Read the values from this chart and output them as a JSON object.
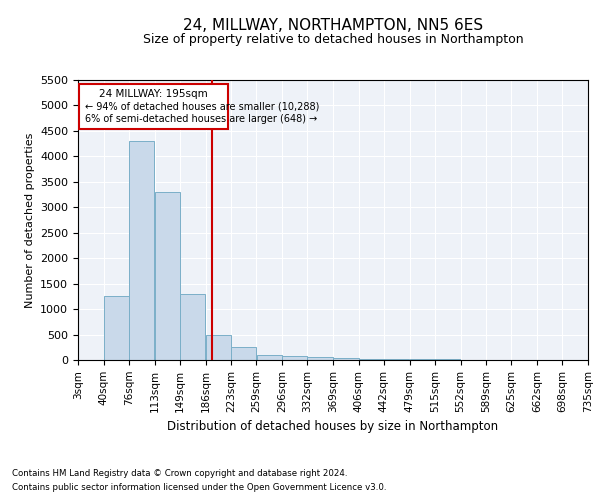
{
  "title": "24, MILLWAY, NORTHAMPTON, NN5 6ES",
  "subtitle": "Size of property relative to detached houses in Northampton",
  "xlabel": "Distribution of detached houses by size in Northampton",
  "ylabel": "Number of detached properties",
  "footnote1": "Contains HM Land Registry data © Crown copyright and database right 2024.",
  "footnote2": "Contains public sector information licensed under the Open Government Licence v3.0.",
  "annotation_title": "24 MILLWAY: 195sqm",
  "annotation_line1": "← 94% of detached houses are smaller (10,288)",
  "annotation_line2": "6% of semi-detached houses are larger (648) →",
  "property_size": 195,
  "bar_left_edges": [
    3,
    40,
    76,
    113,
    149,
    186,
    223,
    259,
    296,
    332,
    369,
    406,
    442,
    479,
    515,
    552,
    589,
    625,
    662,
    698,
    735
  ],
  "bar_heights": [
    0,
    1250,
    4300,
    3300,
    1300,
    500,
    250,
    100,
    75,
    50,
    30,
    25,
    20,
    15,
    10,
    8,
    6,
    5,
    4,
    3,
    0
  ],
  "bar_color": "#c9d9ea",
  "bar_edge_color": "#7aafc8",
  "vline_color": "#cc0000",
  "vline_x": 195,
  "annotation_box_color": "#cc0000",
  "ylim": [
    0,
    5500
  ],
  "yticks": [
    0,
    500,
    1000,
    1500,
    2000,
    2500,
    3000,
    3500,
    4000,
    4500,
    5000,
    5500
  ],
  "bg_color": "#eef2f8",
  "grid_color": "#ffffff",
  "tick_labels": [
    "3sqm",
    "40sqm",
    "76sqm",
    "113sqm",
    "149sqm",
    "186sqm",
    "223sqm",
    "259sqm",
    "296sqm",
    "332sqm",
    "369sqm",
    "406sqm",
    "442sqm",
    "479sqm",
    "515sqm",
    "552sqm",
    "589sqm",
    "625sqm",
    "662sqm",
    "698sqm",
    "735sqm"
  ]
}
